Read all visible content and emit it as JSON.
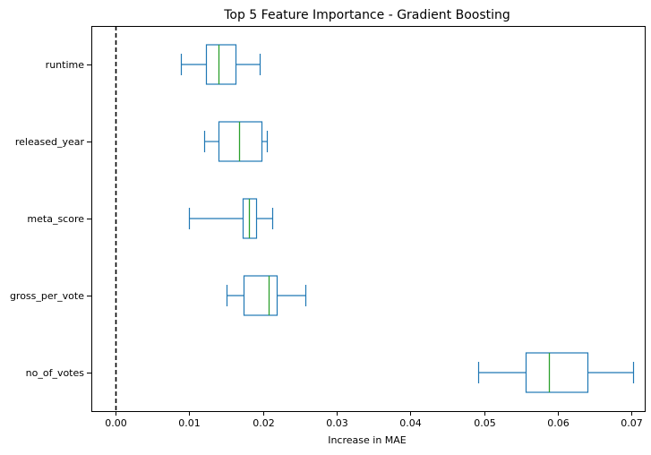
{
  "chart_data": {
    "type": "boxplot",
    "orientation": "horizontal",
    "title": "Top 5 Feature Importance - Gradient Boosting",
    "xlabel": "Increase in MAE",
    "ylabel": "",
    "xlim": [
      -0.0033,
      0.0718
    ],
    "xticks": [
      0.0,
      0.01,
      0.02,
      0.03,
      0.04,
      0.05,
      0.06,
      0.07
    ],
    "xtick_labels": [
      "0.00",
      "0.01",
      "0.02",
      "0.03",
      "0.04",
      "0.05",
      "0.06",
      "0.07"
    ],
    "reference_line": {
      "x": 0.0,
      "style": "dashed",
      "color": "#000000"
    },
    "grid": false,
    "colors": {
      "box": "#1f77b4",
      "median": "#2ca02c",
      "axis": "#000000"
    },
    "categories": [
      "runtime",
      "released_year",
      "meta_score",
      "gross_per_vote",
      "no_of_votes"
    ],
    "boxes": [
      {
        "label": "runtime",
        "whislo": 0.0088,
        "q1": 0.0123,
        "med": 0.014,
        "q3": 0.0163,
        "whishi": 0.0196
      },
      {
        "label": "released_year",
        "whislo": 0.012,
        "q1": 0.014,
        "med": 0.0167,
        "q3": 0.0198,
        "whishi": 0.0205
      },
      {
        "label": "meta_score",
        "whislo": 0.01,
        "q1": 0.0172,
        "med": 0.0181,
        "q3": 0.0191,
        "whishi": 0.0213
      },
      {
        "label": "gross_per_vote",
        "whislo": 0.015,
        "q1": 0.0173,
        "med": 0.0208,
        "q3": 0.0219,
        "whishi": 0.0258
      },
      {
        "label": "no_of_votes",
        "whislo": 0.0492,
        "q1": 0.0556,
        "med": 0.0588,
        "q3": 0.064,
        "whishi": 0.0702
      }
    ]
  }
}
